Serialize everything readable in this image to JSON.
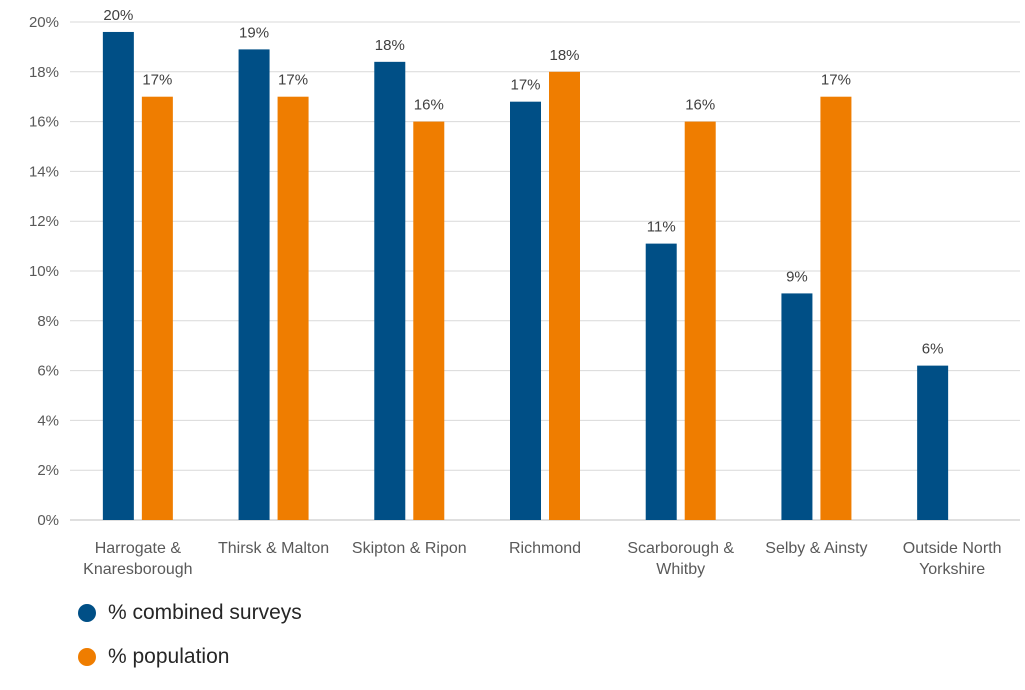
{
  "chart_data": {
    "type": "bar",
    "title": "",
    "xlabel": "",
    "ylabel": "",
    "ylim": [
      0,
      20
    ],
    "yticks": [
      "0%",
      "2%",
      "4%",
      "6%",
      "8%",
      "10%",
      "12%",
      "14%",
      "16%",
      "18%",
      "20%"
    ],
    "categories": [
      [
        "Harrogate &",
        "Knaresborough"
      ],
      [
        "Thirsk & Malton"
      ],
      [
        "Skipton & Ripon"
      ],
      [
        "Richmond"
      ],
      [
        "Scarborough &",
        "Whitby"
      ],
      [
        "Selby & Ainsty"
      ],
      [
        "Outside North",
        "Yorkshire"
      ]
    ],
    "series": [
      {
        "name": "% combined surveys",
        "color": "#004f86",
        "values": [
          19.6,
          18.9,
          18.4,
          16.8,
          11.1,
          9.1,
          6.2
        ],
        "labels": [
          "20%",
          "19%",
          "18%",
          "17%",
          "11%",
          "9%",
          "6%"
        ]
      },
      {
        "name": "% population",
        "color": "#ef7d00",
        "values": [
          17,
          17,
          16,
          18,
          16,
          17,
          null
        ],
        "labels": [
          "17%",
          "17%",
          "16%",
          "18%",
          "16%",
          "17%",
          ""
        ]
      }
    ],
    "grid": true,
    "legend": "bottom-left"
  }
}
